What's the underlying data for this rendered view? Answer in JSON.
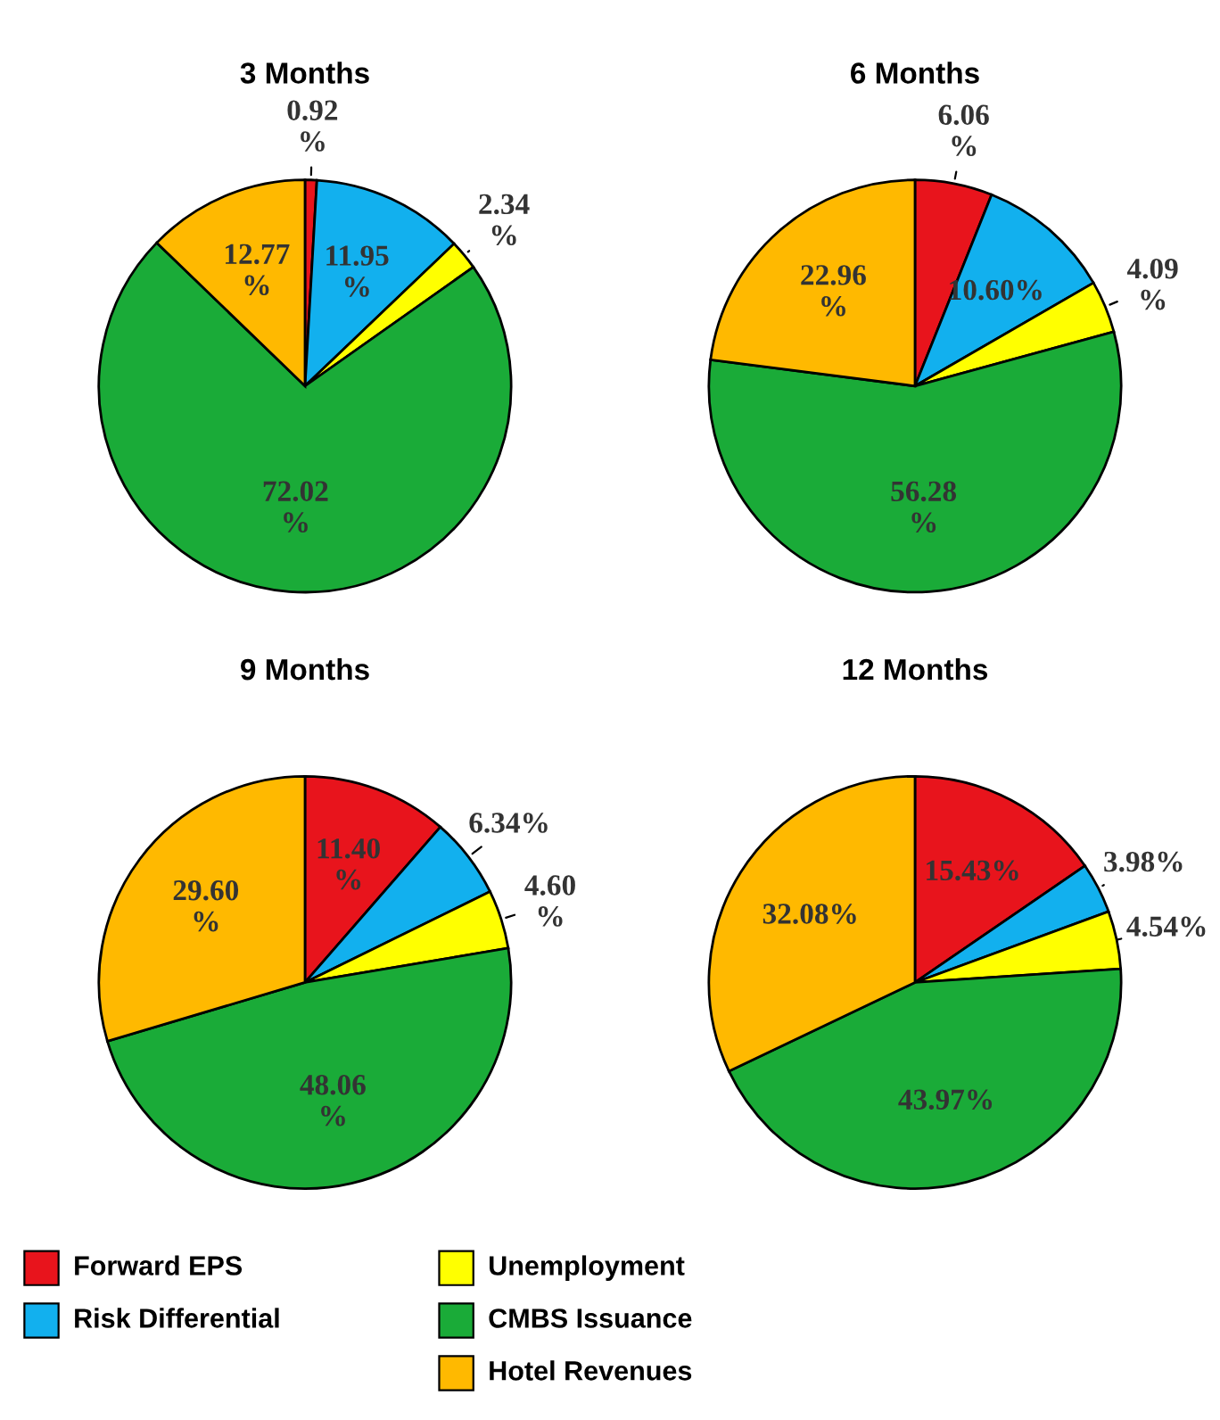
{
  "chart_data": [
    {
      "type": "pie",
      "title": "3 Months",
      "categories": [
        "Forward EPS",
        "Risk Differential",
        "Unemployment",
        "CMBS Issuance",
        "Hotel Revenues"
      ],
      "values": [
        0.92,
        11.95,
        2.34,
        72.02,
        12.77
      ],
      "value_labels": [
        "0.92\n%",
        "11.95\n%",
        "2.34\n%",
        "72.02\n%",
        "12.77\n%"
      ],
      "colors": [
        "#e8141c",
        "#12b0ee",
        "#ffff00",
        "#1aab38",
        "#ffb900"
      ],
      "legend": "bottom"
    },
    {
      "type": "pie",
      "title": "6 Months",
      "categories": [
        null,
        null,
        null,
        null,
        null
      ],
      "values": [
        6.06,
        10.6,
        4.09,
        56.28,
        22.96
      ],
      "value_labels": [
        "6.06\n%",
        "10.60%",
        "4.09\n%",
        "56.28\n%",
        "22.96\n%"
      ],
      "colors": [
        "#e8141c",
        "#12b0ee",
        "#ffff00",
        "#1aab38",
        "#ffb900"
      ]
    },
    {
      "type": "pie",
      "title": "9 Months",
      "categories": [
        null,
        null,
        null,
        null,
        null
      ],
      "values": [
        11.4,
        6.34,
        4.6,
        48.06,
        29.6
      ],
      "value_labels": [
        "11.40\n%",
        "6.34%",
        "4.60\n%",
        "48.06\n%",
        "29.60\n%"
      ],
      "colors": [
        "#e8141c",
        "#12b0ee",
        "#ffff00",
        "#1aab38",
        "#ffb900"
      ]
    },
    {
      "type": "pie",
      "title": "12 Months",
      "categories": [
        null,
        null,
        null,
        null,
        null
      ],
      "values": [
        15.43,
        3.98,
        4.54,
        43.97,
        32.08
      ],
      "value_labels": [
        "15.43%",
        "3.98%",
        "4.54%",
        "43.97%",
        "32.08%"
      ],
      "colors": [
        "#e8141c",
        "#12b0ee",
        "#ffff00",
        "#1aab38",
        "#ffb900"
      ]
    }
  ]
}
